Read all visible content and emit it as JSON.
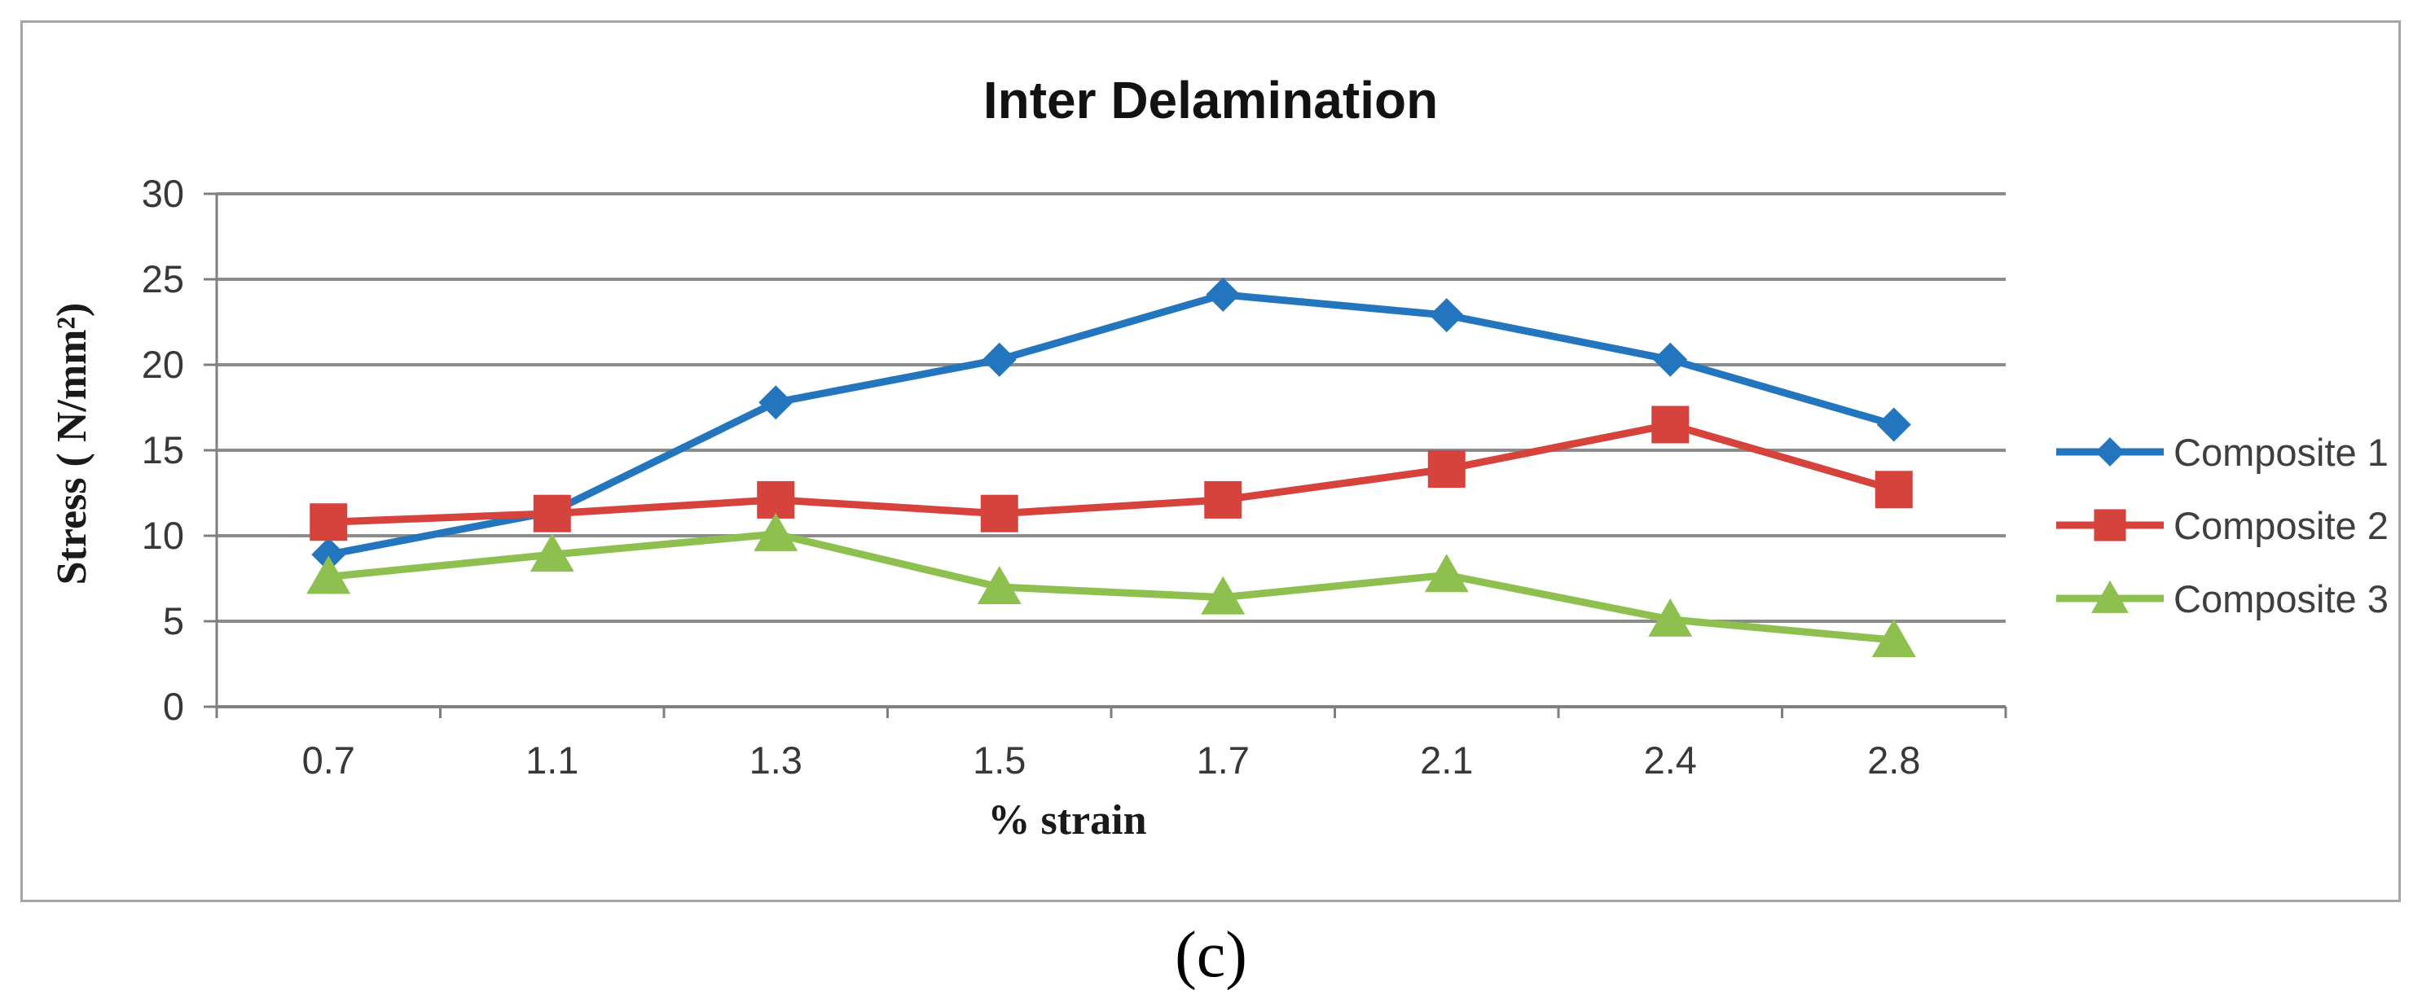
{
  "figure": {
    "caption": "(c)"
  },
  "chart_data": {
    "type": "line",
    "title": "Inter Delamination",
    "xlabel": "% strain",
    "ylabel": "Stress ( N/mm²)",
    "categories": [
      "0.7",
      "1.1",
      "1.3",
      "1.5",
      "1.7",
      "2.1",
      "2.4",
      "2.8"
    ],
    "series": [
      {
        "name": "Composite 1",
        "marker": "diamond",
        "color": "#2376BD",
        "values": [
          8.9,
          11.4,
          17.8,
          20.3,
          24.1,
          22.9,
          20.3,
          16.5
        ]
      },
      {
        "name": "Composite 2",
        "marker": "square",
        "color": "#D6423C",
        "values": [
          10.8,
          11.3,
          12.1,
          11.3,
          12.1,
          13.9,
          16.5,
          12.7
        ]
      },
      {
        "name": "Composite 3",
        "marker": "triangle",
        "color": "#8EC04F",
        "values": [
          7.6,
          8.9,
          10.1,
          7.0,
          6.4,
          7.7,
          5.1,
          3.9
        ]
      }
    ],
    "ylim": [
      0,
      30
    ],
    "ytick_step": 5,
    "grid": true,
    "legend_position": "right"
  },
  "colors": {
    "gridline": "#8b8b8b",
    "axis_line": "#7f7f7f",
    "tick_text": "#383838",
    "title_text": "#121212",
    "legend_text": "#3f3f3f",
    "border": "#a5a5a5"
  }
}
